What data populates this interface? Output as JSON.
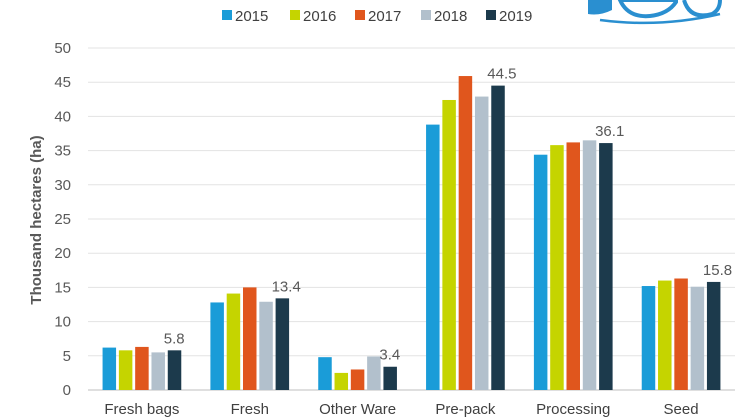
{
  "chart_data": {
    "type": "bar",
    "title": "",
    "xlabel": "",
    "ylabel": "Thousand hectares (ha)",
    "ylim": [
      0,
      50
    ],
    "yticks": [
      0,
      5,
      10,
      15,
      20,
      25,
      30,
      35,
      40,
      45,
      50
    ],
    "grid": true,
    "legend_position": "top",
    "categories": [
      "Fresh bags",
      "Fresh",
      "Other Ware",
      "Pre-pack",
      "Processing",
      "Seed"
    ],
    "series": [
      {
        "name": "2015",
        "color": "#1a9cd8",
        "values": [
          6.2,
          12.8,
          4.8,
          38.8,
          34.4,
          15.2
        ]
      },
      {
        "name": "2016",
        "color": "#c5d400",
        "values": [
          5.8,
          14.1,
          2.5,
          42.4,
          35.8,
          16.0
        ]
      },
      {
        "name": "2017",
        "color": "#e0561d",
        "values": [
          6.3,
          15.0,
          3.0,
          45.9,
          36.2,
          16.3
        ]
      },
      {
        "name": "2018",
        "color": "#b2c0cc",
        "values": [
          5.5,
          12.9,
          4.9,
          42.9,
          36.5,
          15.1
        ]
      },
      {
        "name": "2019",
        "color": "#1c3a4c",
        "values": [
          5.8,
          13.4,
          3.4,
          44.5,
          36.1,
          15.8
        ]
      }
    ],
    "data_labels": [
      {
        "series": "2019",
        "category": "Fresh bags",
        "text": "5.8"
      },
      {
        "series": "2019",
        "category": "Fresh",
        "text": "13.4"
      },
      {
        "series": "2019",
        "category": "Other Ware",
        "text": "3.4"
      },
      {
        "series": "2019",
        "category": "Pre-pack",
        "text": "44.5"
      },
      {
        "series": "2019",
        "category": "Processing",
        "text": "36.1"
      },
      {
        "series": "2019",
        "category": "Seed",
        "text": "15.8"
      }
    ]
  },
  "logo": {
    "color": "#2a8fd0",
    "icon": "wave-logo-icon"
  }
}
